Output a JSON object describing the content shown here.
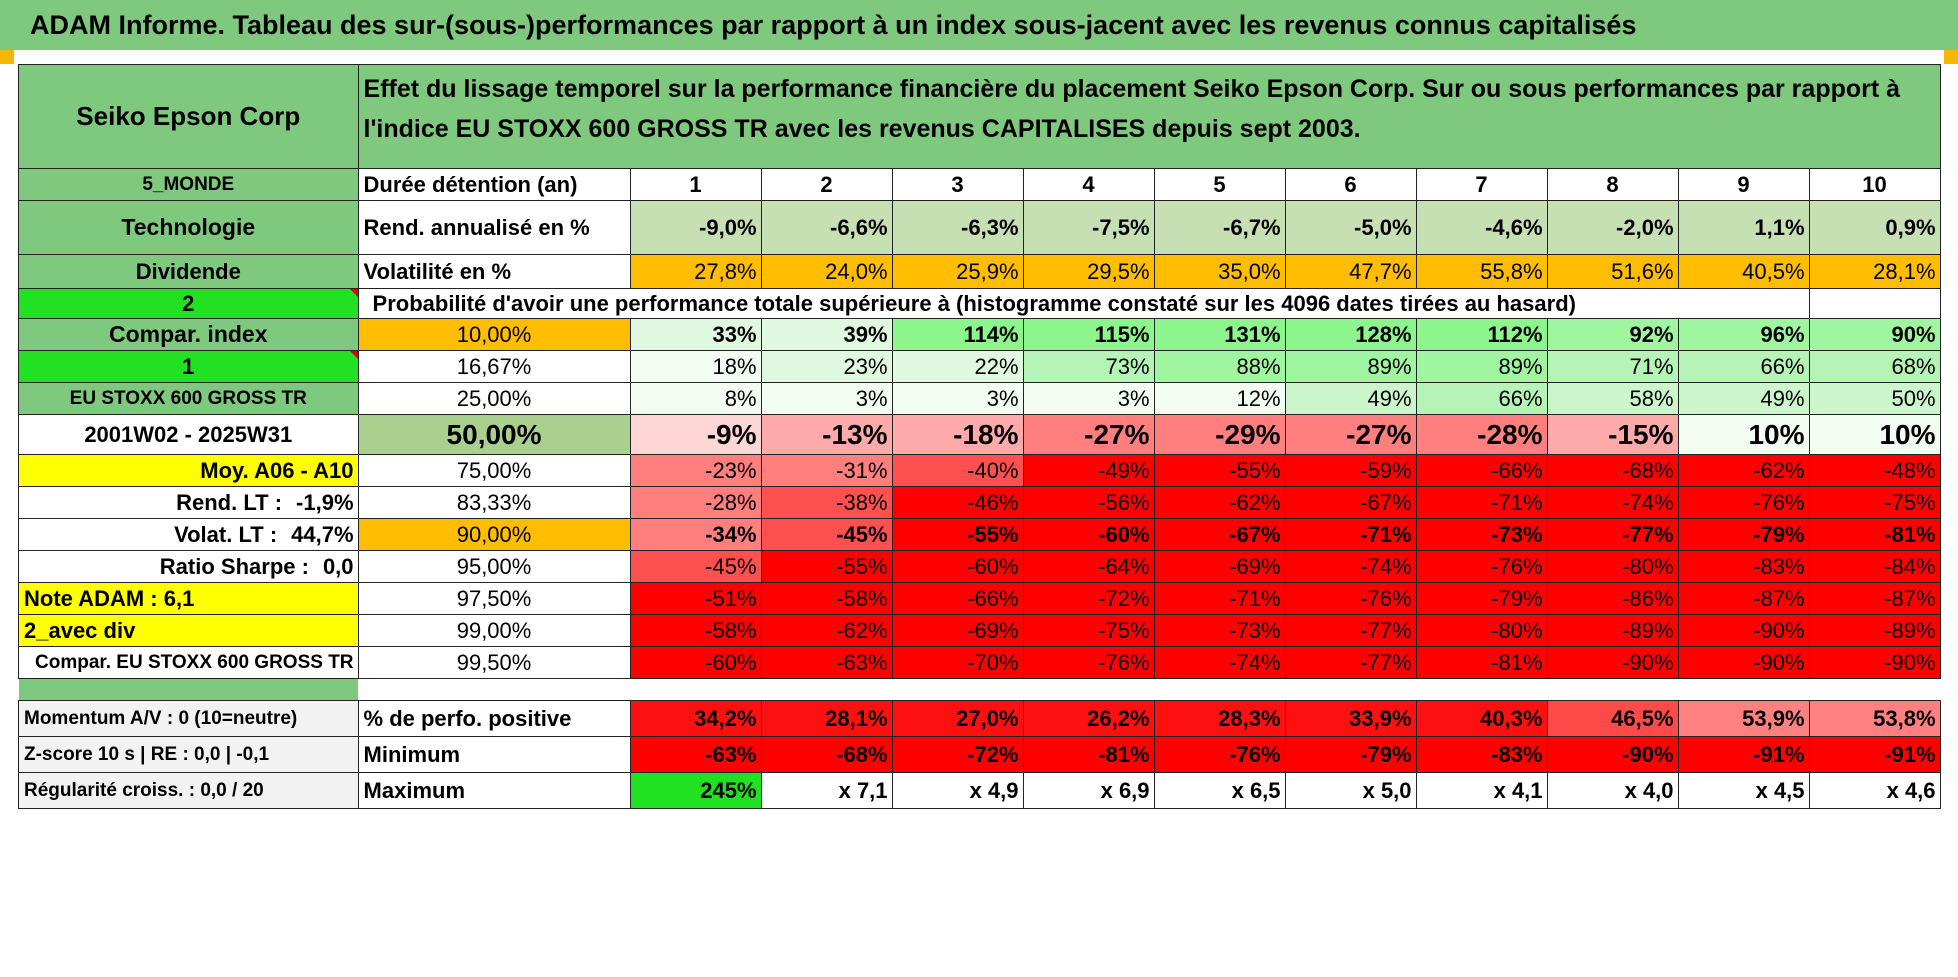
{
  "title": "ADAM Informe. Tableau des sur-(sous-)performances par rapport à un index sous-jacent avec les revenus connus capitalisés",
  "company": "Seiko Epson Corp",
  "description": "Effet du lissage temporel sur la performance financière du placement Seiko Epson Corp. Sur ou sous performances par rapport à l'indice EU STOXX 600 GROSS TR avec les revenus CAPITALISES depuis sept 2003.",
  "side": {
    "region": "5_MONDE",
    "sector": "Technologie",
    "dividend": "Dividende",
    "selector_top": "2",
    "compar_index": "Compar. index",
    "selector_bottom": "1",
    "index_name": "EU STOXX 600 GROSS TR",
    "period": "2001W02 - 2025W31",
    "moy": "Moy. A06 - A10",
    "rend_lt_label": "Rend. LT :",
    "rend_lt_value": "-1,9%",
    "volat_lt_label": "Volat. LT :",
    "volat_lt_value": "44,7%",
    "sharpe_label": "Ratio Sharpe :",
    "sharpe_value": "0,0",
    "note": "Note ADAM : 6,1",
    "avec_div": "2_avec div",
    "compar_label": "Compar. EU STOXX 600 GROSS TR",
    "momentum": "Momentum A/V : 0 (10=neutre)",
    "zscore": "Z-score 10 s | RE : 0,0 | -0,1",
    "regularite": "Régularité croiss. : 0,0 / 20"
  },
  "rows": {
    "duree_label": "Durée détention (an)",
    "years": [
      "1",
      "2",
      "3",
      "4",
      "5",
      "6",
      "7",
      "8",
      "9",
      "10"
    ],
    "rend_label": "Rend. annualisé en %",
    "rend": [
      "-9,0%",
      "-6,6%",
      "-6,3%",
      "-7,5%",
      "-6,7%",
      "-5,0%",
      "-4,6%",
      "-2,0%",
      "1,1%",
      "0,9%"
    ],
    "vol_label": "Volatilité en %",
    "vol": [
      "27,8%",
      "24,0%",
      "25,9%",
      "29,5%",
      "35,0%",
      "47,7%",
      "55,8%",
      "51,6%",
      "40,5%",
      "28,1%"
    ],
    "proba_label": "Probabilité d'avoir une performance totale supérieure à (histogramme constaté sur les 4096 dates tirées au hasard)"
  },
  "quantiles": [
    {
      "level": "10,00%",
      "values": [
        "33%",
        "39%",
        "114%",
        "115%",
        "131%",
        "128%",
        "112%",
        "92%",
        "96%",
        "90%"
      ]
    },
    {
      "level": "16,67%",
      "values": [
        "18%",
        "23%",
        "22%",
        "73%",
        "88%",
        "89%",
        "89%",
        "71%",
        "66%",
        "68%"
      ]
    },
    {
      "level": "25,00%",
      "values": [
        "8%",
        "3%",
        "3%",
        "3%",
        "12%",
        "49%",
        "66%",
        "58%",
        "49%",
        "50%"
      ]
    },
    {
      "level": "50,00%",
      "values": [
        "-9%",
        "-13%",
        "-18%",
        "-27%",
        "-29%",
        "-27%",
        "-28%",
        "-15%",
        "10%",
        "10%"
      ]
    },
    {
      "level": "75,00%",
      "values": [
        "-23%",
        "-31%",
        "-40%",
        "-49%",
        "-55%",
        "-59%",
        "-66%",
        "-68%",
        "-62%",
        "-48%"
      ]
    },
    {
      "level": "83,33%",
      "values": [
        "-28%",
        "-38%",
        "-46%",
        "-56%",
        "-62%",
        "-67%",
        "-71%",
        "-74%",
        "-76%",
        "-75%"
      ]
    },
    {
      "level": "90,00%",
      "values": [
        "-34%",
        "-45%",
        "-55%",
        "-60%",
        "-67%",
        "-71%",
        "-73%",
        "-77%",
        "-79%",
        "-81%"
      ]
    },
    {
      "level": "95,00%",
      "values": [
        "-45%",
        "-55%",
        "-60%",
        "-64%",
        "-69%",
        "-74%",
        "-76%",
        "-80%",
        "-83%",
        "-84%"
      ]
    },
    {
      "level": "97,50%",
      "values": [
        "-51%",
        "-58%",
        "-66%",
        "-72%",
        "-71%",
        "-76%",
        "-79%",
        "-86%",
        "-87%",
        "-87%"
      ]
    },
    {
      "level": "99,00%",
      "values": [
        "-58%",
        "-62%",
        "-69%",
        "-75%",
        "-73%",
        "-77%",
        "-80%",
        "-89%",
        "-90%",
        "-89%"
      ]
    },
    {
      "level": "99,50%",
      "values": [
        "-60%",
        "-63%",
        "-70%",
        "-76%",
        "-74%",
        "-77%",
        "-81%",
        "-90%",
        "-90%",
        "-90%"
      ]
    }
  ],
  "stats": {
    "pos_label": "% de perfo. positive",
    "pos": [
      "34,2%",
      "28,1%",
      "27,0%",
      "26,2%",
      "28,3%",
      "33,9%",
      "40,3%",
      "46,5%",
      "53,9%",
      "53,8%"
    ],
    "min_label": "Minimum",
    "min": [
      "-63%",
      "-68%",
      "-72%",
      "-81%",
      "-76%",
      "-79%",
      "-83%",
      "-90%",
      "-91%",
      "-91%"
    ],
    "max_label": "Maximum",
    "max": [
      "245%",
      "x 7,1",
      "x 4,9",
      "x 6,9",
      "x 6,5",
      "x 5,0",
      "x 4,1",
      "x 4,0",
      "x 4,5",
      "x 4,6"
    ]
  },
  "colors": {
    "header_green": "#7fc97f",
    "bright_green": "#22e022",
    "yellow": "#ffff00",
    "orange": "#ffbd00",
    "rend_green": "#c6e0b4",
    "deep_red": "#ff0000",
    "label_red": "#e00000"
  }
}
